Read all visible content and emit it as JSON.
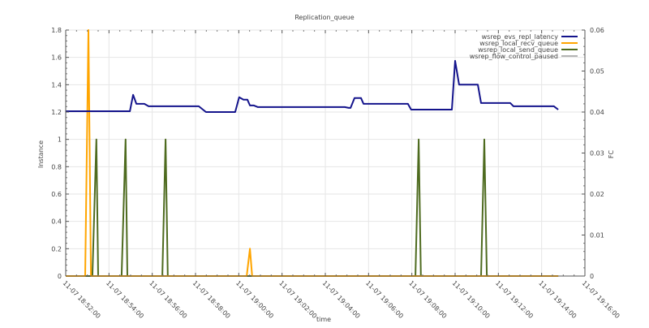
{
  "chart_data": {
    "type": "line",
    "title": "Replication_queue",
    "xlabel": "time",
    "ylabel": "Instance",
    "y2label": "FC",
    "xlim": [
      "11-07 18:52:00",
      "11-07 19:16:00"
    ],
    "ylim": [
      0,
      1.8
    ],
    "y2lim": [
      0,
      0.06
    ],
    "x_ticks": [
      "11-07 18:52:00",
      "11-07 18:54:00",
      "11-07 18:56:00",
      "11-07 18:58:00",
      "11-07 19:00:00",
      "11-07 19:02:00",
      "11-07 19:04:00",
      "11-07 19:06:00",
      "11-07 19:08:00",
      "11-07 19:10:00",
      "11-07 19:12:00",
      "11-07 19:14:00",
      "11-07 19:16:00"
    ],
    "y_ticks": [
      "0",
      "0.2",
      "0.4",
      "0.6",
      "0.8",
      "1",
      "1.2",
      "1.4",
      "1.6",
      "1.8"
    ],
    "y2_ticks": [
      "0",
      "0.01",
      "0.02",
      "0.03",
      "0.04",
      "0.05",
      "0.06"
    ],
    "grid": true,
    "legend_placement": "top-right",
    "series": [
      {
        "name": "wsrep_evs_repl_latency",
        "axis": "right",
        "color": "#14148c",
        "points": [
          [
            "18:52:00",
            0.0402
          ],
          [
            "18:54:58",
            0.0402
          ],
          [
            "18:55:07",
            0.0442
          ],
          [
            "18:55:16",
            0.042
          ],
          [
            "18:55:38",
            0.042
          ],
          [
            "18:55:50",
            0.0414
          ],
          [
            "18:58:09",
            0.0414
          ],
          [
            "18:58:29",
            0.04
          ],
          [
            "18:59:50",
            0.04
          ],
          [
            "19:00:01",
            0.0436
          ],
          [
            "19:00:13",
            0.043
          ],
          [
            "19:00:24",
            0.043
          ],
          [
            "19:00:31",
            0.0416
          ],
          [
            "19:00:42",
            0.0416
          ],
          [
            "19:00:53",
            0.0412
          ],
          [
            "19:04:54",
            0.0412
          ],
          [
            "19:05:05",
            0.041
          ],
          [
            "19:05:10",
            0.041
          ],
          [
            "19:05:21",
            0.0434
          ],
          [
            "19:05:39",
            0.0434
          ],
          [
            "19:05:46",
            0.042
          ],
          [
            "19:07:49",
            0.042
          ],
          [
            "19:07:58",
            0.0406
          ],
          [
            "19:09:51",
            0.0406
          ],
          [
            "19:10:00",
            0.0525
          ],
          [
            "19:10:11",
            0.0467
          ],
          [
            "19:11:03",
            0.0467
          ],
          [
            "19:11:12",
            0.0422
          ],
          [
            "19:12:33",
            0.0422
          ],
          [
            "19:12:42",
            0.0414
          ],
          [
            "19:14:34",
            0.0414
          ],
          [
            "19:14:46",
            0.0406
          ]
        ]
      },
      {
        "name": "wsrep_local_recv_queue",
        "axis": "left",
        "color": "#ffa500",
        "points": [
          [
            "18:52:00",
            0
          ],
          [
            "18:52:54",
            0
          ],
          [
            "18:53:03",
            1.8
          ],
          [
            "18:53:10",
            0
          ],
          [
            "19:00:22",
            0
          ],
          [
            "19:00:31",
            0.2
          ],
          [
            "19:00:37",
            0
          ],
          [
            "19:14:46",
            0
          ]
        ]
      },
      {
        "name": "wsrep_local_send_queue",
        "axis": "left",
        "color": "#4e6b1f",
        "points": [
          [
            "18:52:00",
            0
          ],
          [
            "18:53:14",
            0
          ],
          [
            "18:53:25",
            1
          ],
          [
            "18:53:30",
            0
          ],
          [
            "18:54:35",
            0
          ],
          [
            "18:54:46",
            1
          ],
          [
            "18:54:51",
            0
          ],
          [
            "18:56:28",
            0
          ],
          [
            "18:56:37",
            1
          ],
          [
            "18:56:43",
            0
          ],
          [
            "19:08:10",
            0
          ],
          [
            "19:08:19",
            1
          ],
          [
            "19:08:25",
            0
          ],
          [
            "19:11:12",
            0
          ],
          [
            "19:11:21",
            1
          ],
          [
            "19:11:28",
            0
          ],
          [
            "19:14:46",
            0
          ]
        ]
      },
      {
        "name": "wsrep_flow_control_paused",
        "axis": "right",
        "color": "#b4b4b4",
        "points": [
          [
            "18:52:00",
            0
          ],
          [
            "19:14:46",
            0
          ]
        ]
      }
    ]
  }
}
